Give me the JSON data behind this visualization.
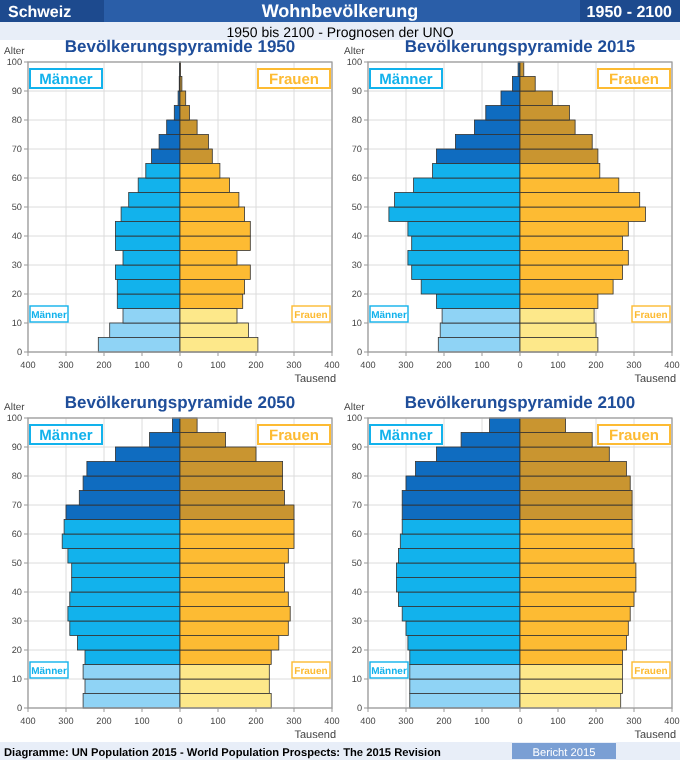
{
  "chart_data": [
    {
      "type": "other",
      "title": "Wohnbevölkerung",
      "subtitle": "1950 bis 2100 - Prognosen der UNO",
      "annotations": [
        "Schweiz",
        "1950 - 2100",
        "Diagramme: UN Population 2015 - World Population Prospects: The 2015 Revision",
        "Bericht 2015"
      ]
    },
    {
      "type": "bar",
      "orientation": "horizontal",
      "title": "Bevölkerungspyramide 1950",
      "stacked": true,
      "xlabel": "Tausend",
      "ylabel": "Alter",
      "xlim": [
        -400,
        400
      ],
      "xticks": [
        {
          "value": -400,
          "label": "400"
        },
        {
          "value": -300,
          "label": "300"
        },
        {
          "value": -200,
          "label": "200"
        },
        {
          "value": -100,
          "label": "100"
        },
        0,
        100,
        200,
        300,
        400
      ],
      "ylim": [
        0,
        100
      ],
      "yticks": [
        0,
        10,
        20,
        30,
        40,
        50,
        60,
        70,
        80,
        90,
        100
      ],
      "grid": true,
      "legend": "top",
      "annotations": [
        "Männer",
        "Frauen"
      ],
      "x": [
        2.5,
        7.5,
        12.5,
        17.5,
        22.5,
        27.5,
        32.5,
        37.5,
        42.5,
        47.5,
        52.5,
        57.5,
        62.5,
        67.5,
        72.5,
        77.5,
        82.5,
        87.5,
        92.5,
        97.5
      ],
      "series": [
        {
          "name": "Männer",
          "colors": [
            "#8fd3f5",
            "#8fd3f5",
            "#8fd3f5",
            "#12b2ec",
            "#12b2ec",
            "#12b2ec",
            "#12b2ec",
            "#12b2ec",
            "#12b2ec",
            "#12b2ec",
            "#12b2ec",
            "#12b2ec",
            "#12b2ec",
            "#0f6cc0",
            "#0f6cc0",
            "#0f6cc0",
            "#0f6cc0",
            "#0f6cc0",
            "#0f6cc0",
            "#0f6cc0"
          ],
          "values": [
            -215,
            -185,
            -150,
            -165,
            -165,
            -170,
            -150,
            -170,
            -170,
            -155,
            -135,
            -110,
            -90,
            -75,
            -55,
            -35,
            -15,
            -5,
            -2,
            -1
          ]
        },
        {
          "name": "Frauen",
          "colors": [
            "#fde88a",
            "#fde88a",
            "#fde88a",
            "#fdbb33",
            "#fdbb33",
            "#fdbb33",
            "#fdbb33",
            "#fdbb33",
            "#fdbb33",
            "#fdbb33",
            "#fdbb33",
            "#fdbb33",
            "#fdbb33",
            "#c99530",
            "#c99530",
            "#c99530",
            "#c99530",
            "#c99530",
            "#c99530",
            "#c99530"
          ],
          "values": [
            205,
            180,
            150,
            165,
            170,
            185,
            150,
            185,
            185,
            170,
            155,
            130,
            105,
            85,
            75,
            45,
            25,
            15,
            5,
            1
          ]
        }
      ]
    },
    {
      "type": "bar",
      "orientation": "horizontal",
      "title": "Bevölkerungspyramide 2015",
      "stacked": true,
      "xlabel": "Tausend",
      "ylabel": "Alter",
      "xlim": [
        -400,
        400
      ],
      "xticks": [
        {
          "value": -400,
          "label": "400"
        },
        {
          "value": -300,
          "label": "300"
        },
        {
          "value": -200,
          "label": "200"
        },
        {
          "value": -100,
          "label": "100"
        },
        0,
        100,
        200,
        300,
        400
      ],
      "ylim": [
        0,
        100
      ],
      "yticks": [
        0,
        10,
        20,
        30,
        40,
        50,
        60,
        70,
        80,
        90,
        100
      ],
      "grid": true,
      "legend": "top",
      "annotations": [
        "Männer",
        "Frauen"
      ],
      "x": [
        2.5,
        7.5,
        12.5,
        17.5,
        22.5,
        27.5,
        32.5,
        37.5,
        42.5,
        47.5,
        52.5,
        57.5,
        62.5,
        67.5,
        72.5,
        77.5,
        82.5,
        87.5,
        92.5,
        97.5
      ],
      "series": [
        {
          "name": "Männer",
          "colors": [
            "#8fd3f5",
            "#8fd3f5",
            "#8fd3f5",
            "#12b2ec",
            "#12b2ec",
            "#12b2ec",
            "#12b2ec",
            "#12b2ec",
            "#12b2ec",
            "#12b2ec",
            "#12b2ec",
            "#12b2ec",
            "#12b2ec",
            "#0f6cc0",
            "#0f6cc0",
            "#0f6cc0",
            "#0f6cc0",
            "#0f6cc0",
            "#0f6cc0",
            "#0f6cc0"
          ],
          "values": [
            -215,
            -210,
            -205,
            -220,
            -260,
            -285,
            -295,
            -285,
            -295,
            -345,
            -330,
            -280,
            -230,
            -220,
            -170,
            -120,
            -90,
            -50,
            -20,
            -5
          ]
        },
        {
          "name": "Frauen",
          "colors": [
            "#fde88a",
            "#fde88a",
            "#fde88a",
            "#fdbb33",
            "#fdbb33",
            "#fdbb33",
            "#fdbb33",
            "#fdbb33",
            "#fdbb33",
            "#fdbb33",
            "#fdbb33",
            "#fdbb33",
            "#fdbb33",
            "#c99530",
            "#c99530",
            "#c99530",
            "#c99530",
            "#c99530",
            "#c99530",
            "#c99530"
          ],
          "values": [
            205,
            200,
            195,
            205,
            245,
            270,
            285,
            270,
            285,
            330,
            315,
            260,
            210,
            205,
            190,
            145,
            130,
            85,
            40,
            10
          ]
        }
      ]
    },
    {
      "type": "bar",
      "orientation": "horizontal",
      "title": "Bevölkerungspyramide 2050",
      "stacked": true,
      "xlabel": "Tausend",
      "ylabel": "Alter",
      "xlim": [
        -400,
        400
      ],
      "xticks": [
        {
          "value": -400,
          "label": "400"
        },
        {
          "value": -300,
          "label": "300"
        },
        {
          "value": -200,
          "label": "200"
        },
        {
          "value": -100,
          "label": "100"
        },
        0,
        100,
        200,
        300,
        400
      ],
      "ylim": [
        0,
        100
      ],
      "yticks": [
        0,
        10,
        20,
        30,
        40,
        50,
        60,
        70,
        80,
        90,
        100
      ],
      "grid": true,
      "legend": "top",
      "annotations": [
        "Männer",
        "Frauen"
      ],
      "x": [
        2.5,
        7.5,
        12.5,
        17.5,
        22.5,
        27.5,
        32.5,
        37.5,
        42.5,
        47.5,
        52.5,
        57.5,
        62.5,
        67.5,
        72.5,
        77.5,
        82.5,
        87.5,
        92.5,
        97.5
      ],
      "series": [
        {
          "name": "Männer",
          "colors": [
            "#8fd3f5",
            "#8fd3f5",
            "#8fd3f5",
            "#12b2ec",
            "#12b2ec",
            "#12b2ec",
            "#12b2ec",
            "#12b2ec",
            "#12b2ec",
            "#12b2ec",
            "#12b2ec",
            "#12b2ec",
            "#12b2ec",
            "#0f6cc0",
            "#0f6cc0",
            "#0f6cc0",
            "#0f6cc0",
            "#0f6cc0",
            "#0f6cc0",
            "#0f6cc0"
          ],
          "values": [
            -255,
            -250,
            -255,
            -250,
            -270,
            -290,
            -295,
            -290,
            -285,
            -285,
            -295,
            -310,
            -305,
            -300,
            -265,
            -255,
            -245,
            -170,
            -80,
            -20
          ]
        },
        {
          "name": "Frauen",
          "colors": [
            "#fde88a",
            "#fde88a",
            "#fde88a",
            "#fdbb33",
            "#fdbb33",
            "#fdbb33",
            "#fdbb33",
            "#fdbb33",
            "#fdbb33",
            "#fdbb33",
            "#fdbb33",
            "#fdbb33",
            "#fdbb33",
            "#c99530",
            "#c99530",
            "#c99530",
            "#c99530",
            "#c99530",
            "#c99530",
            "#c99530"
          ],
          "values": [
            240,
            235,
            235,
            240,
            260,
            285,
            290,
            285,
            275,
            275,
            285,
            300,
            300,
            300,
            275,
            270,
            270,
            200,
            120,
            45
          ]
        }
      ]
    },
    {
      "type": "bar",
      "orientation": "horizontal",
      "title": "Bevölkerungspyramide 2100",
      "stacked": true,
      "xlabel": "Tausend",
      "ylabel": "Alter",
      "xlim": [
        -400,
        400
      ],
      "xticks": [
        {
          "value": -400,
          "label": "400"
        },
        {
          "value": -300,
          "label": "300"
        },
        {
          "value": -200,
          "label": "200"
        },
        {
          "value": -100,
          "label": "100"
        },
        0,
        100,
        200,
        300,
        400
      ],
      "ylim": [
        0,
        100
      ],
      "yticks": [
        0,
        10,
        20,
        30,
        40,
        50,
        60,
        70,
        80,
        90,
        100
      ],
      "grid": true,
      "legend": "top",
      "annotations": [
        "Männer",
        "Frauen"
      ],
      "x": [
        2.5,
        7.5,
        12.5,
        17.5,
        22.5,
        27.5,
        32.5,
        37.5,
        42.5,
        47.5,
        52.5,
        57.5,
        62.5,
        67.5,
        72.5,
        77.5,
        82.5,
        87.5,
        92.5,
        97.5
      ],
      "series": [
        {
          "name": "Männer",
          "colors": [
            "#8fd3f5",
            "#8fd3f5",
            "#8fd3f5",
            "#12b2ec",
            "#12b2ec",
            "#12b2ec",
            "#12b2ec",
            "#12b2ec",
            "#12b2ec",
            "#12b2ec",
            "#12b2ec",
            "#12b2ec",
            "#12b2ec",
            "#0f6cc0",
            "#0f6cc0",
            "#0f6cc0",
            "#0f6cc0",
            "#0f6cc0",
            "#0f6cc0",
            "#0f6cc0"
          ],
          "values": [
            -290,
            -290,
            -290,
            -290,
            -295,
            -300,
            -310,
            -320,
            -325,
            -325,
            -320,
            -315,
            -310,
            -310,
            -310,
            -300,
            -275,
            -220,
            -155,
            -80
          ]
        },
        {
          "name": "Frauen",
          "colors": [
            "#fde88a",
            "#fde88a",
            "#fde88a",
            "#fdbb33",
            "#fdbb33",
            "#fdbb33",
            "#fdbb33",
            "#fdbb33",
            "#fdbb33",
            "#fdbb33",
            "#fdbb33",
            "#fdbb33",
            "#fdbb33",
            "#c99530",
            "#c99530",
            "#c99530",
            "#c99530",
            "#c99530",
            "#c99530",
            "#c99530"
          ],
          "values": [
            265,
            270,
            270,
            270,
            280,
            285,
            290,
            300,
            305,
            305,
            300,
            295,
            295,
            295,
            295,
            290,
            280,
            235,
            190,
            120
          ]
        }
      ]
    }
  ]
}
